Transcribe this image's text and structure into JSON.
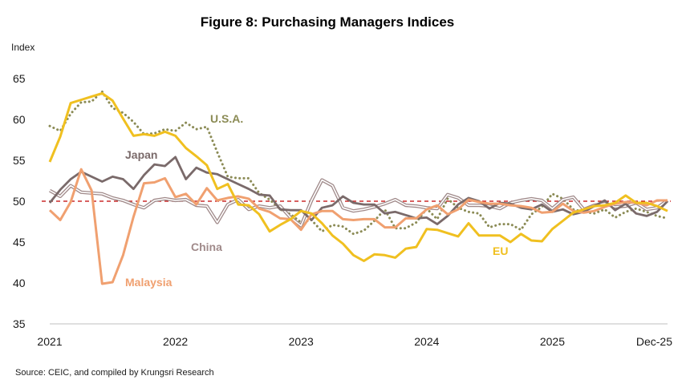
{
  "chart_data": {
    "type": "line",
    "title": "Figure 8: Purchasing Managers Indices",
    "ylabel": "Index",
    "xlabel": "",
    "ylim": [
      35,
      65
    ],
    "yticks": [
      35,
      40,
      45,
      50,
      55,
      60,
      65
    ],
    "xlim": [
      0,
      59
    ],
    "xticks": [
      {
        "label": "2021",
        "x": 0
      },
      {
        "label": "2022",
        "x": 12
      },
      {
        "label": "2023",
        "x": 24
      },
      {
        "label": "2024",
        "x": 36
      },
      {
        "label": "2025",
        "x": 48
      },
      {
        "label": "Dec-25",
        "x": 59
      }
    ],
    "reference_line": {
      "value": 50,
      "color": "#c00000",
      "style": "dashed"
    },
    "legend": "inline labels",
    "series": [
      {
        "name": "U.S.A.",
        "color": "#8b8b55",
        "style": "dotted",
        "values": [
          59.2,
          58.6,
          60.7,
          62.1,
          62.2,
          63.4,
          61.4,
          60.8,
          59.7,
          58.2,
          58.3,
          58.8,
          58.6,
          59.6,
          58.8,
          59.1,
          56.0,
          53.0,
          52.8,
          52.8,
          51.0,
          50.2,
          49.0,
          48.4,
          47.4,
          47.7,
          46.3,
          47.1,
          46.9,
          46.0,
          46.4,
          47.6,
          49.0,
          46.7,
          46.7,
          47.4,
          49.1,
          47.8,
          50.3,
          49.2,
          48.7,
          48.5,
          46.8,
          47.2,
          47.2,
          46.5,
          48.4,
          49.3,
          50.9,
          50.3,
          49.0,
          48.7,
          48.5,
          49.0,
          48.0,
          48.7,
          49.1,
          48.7,
          48.2,
          47.9
        ]
      },
      {
        "name": "EU",
        "color": "#f0c020",
        "style": "solid",
        "values": [
          54.8,
          57.9,
          62.0,
          62.4,
          62.8,
          63.2,
          62.3,
          60.1,
          58.0,
          58.2,
          58.0,
          58.5,
          58.0,
          56.5,
          55.5,
          54.4,
          51.5,
          52.1,
          49.6,
          49.5,
          48.4,
          46.3,
          47.1,
          47.8,
          48.8,
          48.5,
          47.3,
          45.8,
          44.8,
          43.4,
          42.7,
          43.5,
          43.4,
          43.1,
          44.2,
          44.4,
          46.6,
          46.5,
          46.1,
          45.7,
          47.3,
          45.8,
          45.8,
          45.8,
          45.0,
          46.0,
          45.2,
          45.1,
          46.6,
          47.6,
          48.6,
          49.0,
          49.4,
          49.5,
          49.8,
          50.7,
          49.8,
          49.8,
          49.4,
          48.8
        ]
      },
      {
        "name": "Japan",
        "color": "#7a6a6a",
        "style": "solid",
        "values": [
          49.8,
          51.4,
          52.7,
          53.6,
          53.0,
          52.4,
          53.0,
          52.7,
          51.5,
          53.2,
          54.5,
          54.3,
          55.4,
          52.7,
          54.1,
          53.5,
          53.3,
          52.7,
          52.1,
          51.5,
          50.8,
          50.7,
          49.0,
          48.9,
          48.9,
          47.7,
          49.2,
          49.5,
          50.6,
          49.8,
          49.6,
          49.6,
          48.5,
          48.7,
          48.3,
          47.9,
          48.0,
          47.2,
          48.2,
          49.6,
          50.4,
          50.0,
          49.1,
          49.8,
          49.7,
          49.2,
          49.0,
          49.6,
          48.7,
          49.0,
          48.4,
          48.7,
          49.4,
          50.1,
          48.9,
          49.7,
          48.5,
          48.2,
          48.7,
          50.0
        ]
      },
      {
        "name": "China",
        "color": "#a08a8a",
        "style": "double",
        "values": [
          51.3,
          50.6,
          51.9,
          51.1,
          51.0,
          50.9,
          50.4,
          50.1,
          49.6,
          49.2,
          50.1,
          50.3,
          50.1,
          50.2,
          49.5,
          49.4,
          47.4,
          49.6,
          50.2,
          49.0,
          49.4,
          49.2,
          49.4,
          48.0,
          47.0,
          50.1,
          52.6,
          51.9,
          49.2,
          48.8,
          49.0,
          49.3,
          49.7,
          50.2,
          49.5,
          49.4,
          49.2,
          49.1,
          50.8,
          50.4,
          49.5,
          49.5,
          49.4,
          49.1,
          49.8,
          50.1,
          50.3,
          50.1,
          49.1,
          50.2,
          50.5,
          49.0,
          49.5,
          49.7,
          49.3,
          49.4,
          49.8,
          49.0,
          49.2,
          50.1
        ]
      },
      {
        "name": "Malaysia",
        "color": "#f0a070",
        "style": "solid",
        "values": [
          48.9,
          47.7,
          49.9,
          53.9,
          51.3,
          39.9,
          40.1,
          43.4,
          48.1,
          52.2,
          52.3,
          52.8,
          50.5,
          50.9,
          49.6,
          51.6,
          50.1,
          50.4,
          50.6,
          50.3,
          49.1,
          48.7,
          47.9,
          47.8,
          46.5,
          48.4,
          48.8,
          48.8,
          47.8,
          47.7,
          47.8,
          47.8,
          46.8,
          46.8,
          47.9,
          47.9,
          49.0,
          49.5,
          48.4,
          49.0,
          50.2,
          49.9,
          49.7,
          49.7,
          49.5,
          49.4,
          49.2,
          48.6,
          48.7,
          49.7,
          48.8,
          48.6,
          48.8,
          49.3,
          49.7,
          49.9,
          49.8,
          49.5,
          50.1,
          50.1
        ]
      }
    ],
    "annotations": [
      {
        "text": "U.S.A.",
        "series": "U.S.A."
      },
      {
        "text": "Japan",
        "series": "Japan"
      },
      {
        "text": "China",
        "series": "China"
      },
      {
        "text": "Malaysia",
        "series": "Malaysia"
      },
      {
        "text": "EU",
        "series": "EU"
      }
    ]
  },
  "source": "Source: CEIC, and compiled by Krungsri Research"
}
